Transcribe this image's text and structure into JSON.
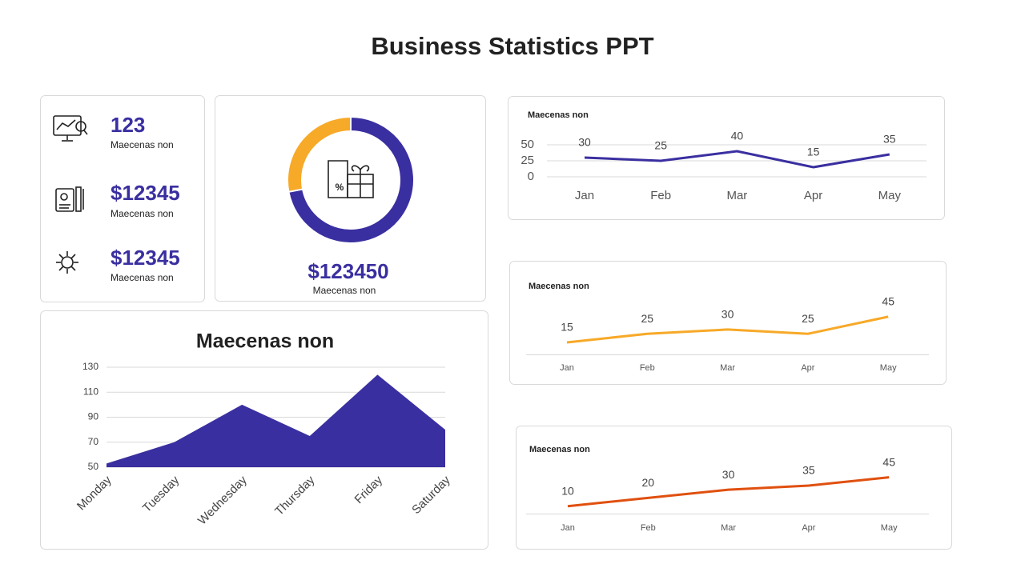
{
  "title": "Business Statistics  PPT",
  "cards": [
    {
      "value": "123",
      "label": "Maecenas non"
    },
    {
      "value": "$12345",
      "label": "Maecenas non"
    },
    {
      "value": "$12345",
      "label": "Maecenas non"
    }
  ],
  "donut_card": {
    "value": "$123450",
    "label": "Maecenas non"
  },
  "chart_data": [
    {
      "type": "pie",
      "values": [
        72,
        28
      ],
      "colors": [
        "#3a2fa0",
        "#f7a928"
      ]
    },
    {
      "type": "line",
      "title": "Maecenas non",
      "categories": [
        "Jan",
        "Feb",
        "Mar",
        "Apr",
        "May"
      ],
      "values": [
        30,
        25,
        40,
        15,
        35
      ],
      "color": "#3a2fa0",
      "ylim": [
        0,
        50
      ],
      "yticks": [
        0,
        25,
        50
      ],
      "grid": true
    },
    {
      "type": "line",
      "title": "Maecenas non",
      "categories": [
        "Jan",
        "Feb",
        "Mar",
        "Apr",
        "May"
      ],
      "values": [
        15,
        25,
        30,
        25,
        45
      ],
      "color": "#f7a928"
    },
    {
      "type": "line",
      "title": "Maecenas non",
      "categories": [
        "Jan",
        "Feb",
        "Mar",
        "Apr",
        "May"
      ],
      "values": [
        10,
        20,
        30,
        35,
        45
      ],
      "color": "#e0500f"
    },
    {
      "type": "area",
      "title": "Maecenas non",
      "categories": [
        "Monday",
        "Tuesday",
        "Wednesday",
        "Thursday",
        "Friday",
        "Saturday"
      ],
      "values": [
        53,
        70,
        100,
        75,
        124,
        80
      ],
      "color": "#3a2fa0",
      "ylim": [
        50,
        130
      ],
      "yticks": [
        50,
        70,
        90,
        110,
        130
      ],
      "grid": true
    }
  ]
}
